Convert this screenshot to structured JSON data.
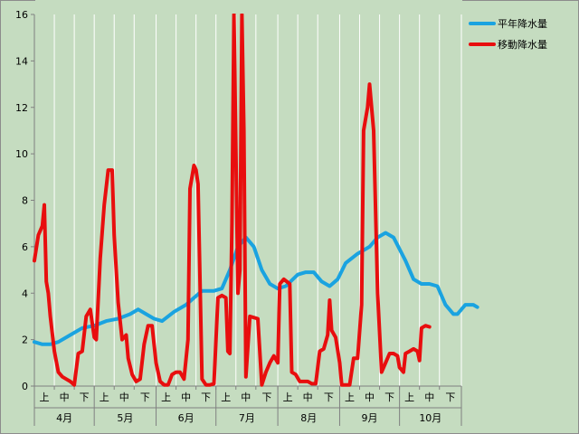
{
  "chart_data": {
    "type": "line",
    "title": "",
    "xlabel": "",
    "ylabel": "",
    "ylim": [
      0,
      16
    ],
    "yticks": [
      0,
      2,
      4,
      6,
      8,
      10,
      12,
      14,
      16
    ],
    "months": [
      "4月",
      "5月",
      "6月",
      "7月",
      "8月",
      "9月",
      "10月"
    ],
    "periods": [
      "上",
      "中",
      "下"
    ],
    "grid": "vertical",
    "legend_position": "top-right",
    "x_unit": "day index from 4月1日 (0–213)",
    "series": [
      {
        "name": "平年降水量",
        "color": "#1aa3e0",
        "points": [
          [
            0,
            1.9
          ],
          [
            4,
            1.8
          ],
          [
            8,
            1.8
          ],
          [
            12,
            1.9
          ],
          [
            18,
            2.2
          ],
          [
            24,
            2.5
          ],
          [
            30,
            2.6
          ],
          [
            36,
            2.8
          ],
          [
            42,
            2.9
          ],
          [
            48,
            3.1
          ],
          [
            52,
            3.3
          ],
          [
            56,
            3.1
          ],
          [
            60,
            2.9
          ],
          [
            64,
            2.8
          ],
          [
            70,
            3.2
          ],
          [
            76,
            3.5
          ],
          [
            80,
            3.8
          ],
          [
            84,
            4.1
          ],
          [
            90,
            4.1
          ],
          [
            94,
            4.2
          ],
          [
            98,
            5.0
          ],
          [
            102,
            6.0
          ],
          [
            106,
            6.4
          ],
          [
            110,
            6.0
          ],
          [
            114,
            5.0
          ],
          [
            118,
            4.4
          ],
          [
            122,
            4.2
          ],
          [
            126,
            4.3
          ],
          [
            132,
            4.8
          ],
          [
            136,
            4.9
          ],
          [
            140,
            4.9
          ],
          [
            144,
            4.5
          ],
          [
            148,
            4.3
          ],
          [
            152,
            4.6
          ],
          [
            156,
            5.3
          ],
          [
            162,
            5.7
          ],
          [
            168,
            6.0
          ],
          [
            172,
            6.4
          ],
          [
            176,
            6.6
          ],
          [
            180,
            6.4
          ],
          [
            186,
            5.4
          ],
          [
            190,
            4.6
          ],
          [
            194,
            4.4
          ],
          [
            198,
            4.4
          ],
          [
            202,
            4.3
          ],
          [
            206,
            3.5
          ],
          [
            210,
            3.1
          ],
          [
            212,
            3.1
          ],
          [
            216,
            3.5
          ],
          [
            220,
            3.5
          ],
          [
            222,
            3.4
          ]
        ]
      },
      {
        "name": "移動降水量",
        "color": "#e80e0e",
        "points": [
          [
            0,
            5.4
          ],
          [
            2,
            6.5
          ],
          [
            4,
            6.9
          ],
          [
            5,
            7.8
          ],
          [
            6,
            4.5
          ],
          [
            7,
            4.0
          ],
          [
            8,
            3.0
          ],
          [
            10,
            1.5
          ],
          [
            12,
            0.6
          ],
          [
            14,
            0.4
          ],
          [
            16,
            0.3
          ],
          [
            18,
            0.2
          ],
          [
            20,
            0.05
          ],
          [
            22,
            1.4
          ],
          [
            24,
            1.5
          ],
          [
            26,
            3.0
          ],
          [
            28,
            3.3
          ],
          [
            30,
            2.1
          ],
          [
            31,
            2.0
          ],
          [
            33,
            5.5
          ],
          [
            35,
            7.8
          ],
          [
            37,
            9.3
          ],
          [
            39,
            9.3
          ],
          [
            40,
            6.5
          ],
          [
            42,
            3.6
          ],
          [
            44,
            2.0
          ],
          [
            46,
            2.2
          ],
          [
            47,
            1.2
          ],
          [
            49,
            0.5
          ],
          [
            51,
            0.2
          ],
          [
            53,
            0.3
          ],
          [
            55,
            1.8
          ],
          [
            57,
            2.6
          ],
          [
            59,
            2.6
          ],
          [
            61,
            1.0
          ],
          [
            63,
            0.2
          ],
          [
            65,
            0.05
          ],
          [
            67,
            0.05
          ],
          [
            69,
            0.5
          ],
          [
            71,
            0.6
          ],
          [
            73,
            0.6
          ],
          [
            75,
            0.3
          ],
          [
            77,
            2.0
          ],
          [
            78,
            8.5
          ],
          [
            80,
            9.5
          ],
          [
            81,
            9.3
          ],
          [
            82,
            8.7
          ],
          [
            84,
            0.3
          ],
          [
            86,
            0.05
          ],
          [
            88,
            0.05
          ],
          [
            90,
            0.1
          ],
          [
            92,
            3.8
          ],
          [
            94,
            3.9
          ],
          [
            96,
            3.8
          ],
          [
            97,
            1.5
          ],
          [
            98,
            1.4
          ],
          [
            99,
            7.0
          ],
          [
            100,
            16.5
          ],
          [
            101,
            10.0
          ],
          [
            102,
            4.0
          ],
          [
            103,
            5.0
          ],
          [
            104,
            16.5
          ],
          [
            105,
            11.0
          ],
          [
            106,
            0.4
          ],
          [
            108,
            3.0
          ],
          [
            112,
            2.9
          ],
          [
            114,
            0.05
          ],
          [
            116,
            0.6
          ],
          [
            118,
            1.0
          ],
          [
            120,
            1.3
          ],
          [
            122,
            1.0
          ],
          [
            123,
            4.4
          ],
          [
            125,
            4.6
          ],
          [
            128,
            4.4
          ],
          [
            129,
            0.6
          ],
          [
            131,
            0.5
          ],
          [
            133,
            0.2
          ],
          [
            135,
            0.2
          ],
          [
            137,
            0.2
          ],
          [
            139,
            0.1
          ],
          [
            141,
            0.1
          ],
          [
            143,
            1.5
          ],
          [
            145,
            1.6
          ],
          [
            147,
            2.2
          ],
          [
            148,
            3.7
          ],
          [
            149,
            2.4
          ],
          [
            151,
            2.1
          ],
          [
            153,
            1.0
          ],
          [
            154,
            0.05
          ],
          [
            156,
            0.05
          ],
          [
            158,
            0.05
          ],
          [
            160,
            1.2
          ],
          [
            162,
            1.2
          ],
          [
            164,
            3.5
          ],
          [
            165,
            11.0
          ],
          [
            167,
            12.0
          ],
          [
            168,
            13.0
          ],
          [
            170,
            11.0
          ],
          [
            172,
            4.0
          ],
          [
            174,
            0.6
          ],
          [
            176,
            1.0
          ],
          [
            178,
            1.4
          ],
          [
            180,
            1.4
          ],
          [
            182,
            1.3
          ],
          [
            183,
            0.8
          ],
          [
            185,
            0.6
          ],
          [
            186,
            1.4
          ],
          [
            188,
            1.5
          ],
          [
            190,
            1.6
          ],
          [
            192,
            1.5
          ],
          [
            193,
            1.1
          ],
          [
            194,
            2.5
          ],
          [
            196,
            2.6
          ],
          [
            198,
            2.55
          ]
        ]
      }
    ]
  }
}
